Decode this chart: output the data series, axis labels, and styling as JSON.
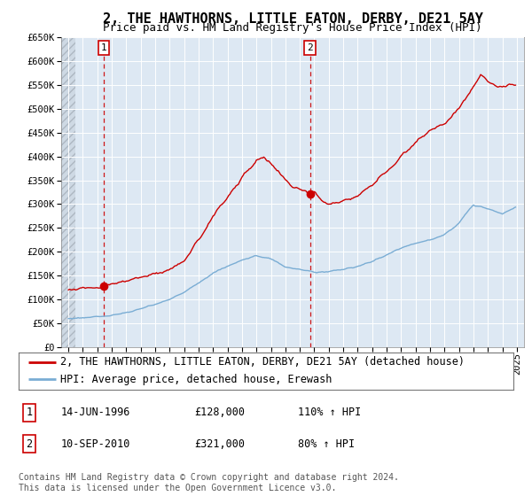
{
  "title": "2, THE HAWTHORNS, LITTLE EATON, DERBY, DE21 5AY",
  "subtitle": "Price paid vs. HM Land Registry's House Price Index (HPI)",
  "legend_line1": "2, THE HAWTHORNS, LITTLE EATON, DERBY, DE21 5AY (detached house)",
  "legend_line2": "HPI: Average price, detached house, Erewash",
  "annotation1_label": "1",
  "annotation1_date": "14-JUN-1996",
  "annotation1_price": "£128,000",
  "annotation1_hpi": "110% ↑ HPI",
  "annotation2_label": "2",
  "annotation2_date": "10-SEP-2010",
  "annotation2_price": "£321,000",
  "annotation2_hpi": "80% ↑ HPI",
  "footer": "Contains HM Land Registry data © Crown copyright and database right 2024.\nThis data is licensed under the Open Government Licence v3.0.",
  "sale1_x": 1996.45,
  "sale1_y": 128000,
  "sale2_x": 2010.7,
  "sale2_y": 321000,
  "vline1_x": 1996.45,
  "vline2_x": 2010.7,
  "hpi_color": "#7aadd4",
  "price_color": "#cc0000",
  "vline_color": "#cc0000",
  "background_plot": "#dde8f3",
  "background_figure": "#ffffff",
  "grid_color": "#ffffff",
  "hatch_color": "#c0c8d0",
  "ylim": [
    0,
    650000
  ],
  "yticks": [
    0,
    50000,
    100000,
    150000,
    200000,
    250000,
    300000,
    350000,
    400000,
    450000,
    500000,
    550000,
    600000,
    650000
  ],
  "xlim_start": 1993.5,
  "xlim_end": 2025.5,
  "hatch_end": 1994.5,
  "title_fontsize": 11,
  "subtitle_fontsize": 9,
  "axis_fontsize": 7.5,
  "legend_fontsize": 8.5,
  "footer_fontsize": 7,
  "annotation_fontsize": 8.5
}
